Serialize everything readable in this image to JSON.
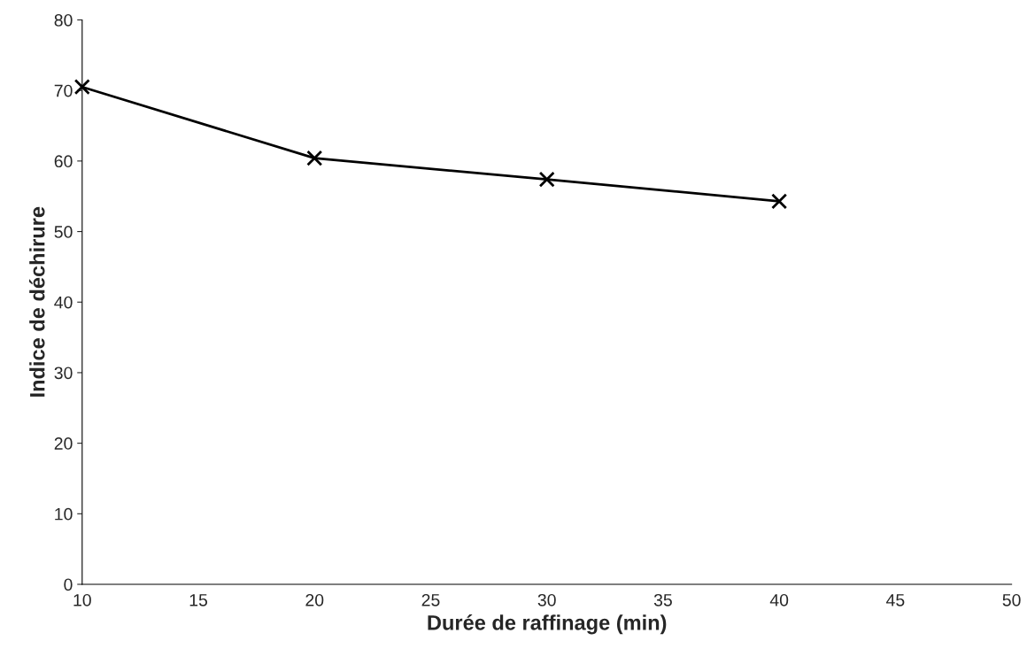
{
  "chart_data": {
    "type": "line",
    "xlabel": "Durée de raffinage (min)",
    "ylabel": "Indice de déchirure",
    "x": [
      10,
      20,
      30,
      40
    ],
    "series": [
      {
        "color": "#000000",
        "values": [
          70.5,
          60.4,
          57.4,
          54.3
        ]
      }
    ],
    "xlim": [
      10,
      50
    ],
    "xticks": [
      10,
      15,
      20,
      25,
      30,
      35,
      40,
      45,
      50
    ],
    "ylim": [
      0,
      80
    ],
    "yticks": [
      0,
      10,
      20,
      30,
      40,
      50,
      60,
      70,
      80
    ],
    "marker": "cross",
    "line_style": "solid",
    "grid": false,
    "legend": false
  }
}
